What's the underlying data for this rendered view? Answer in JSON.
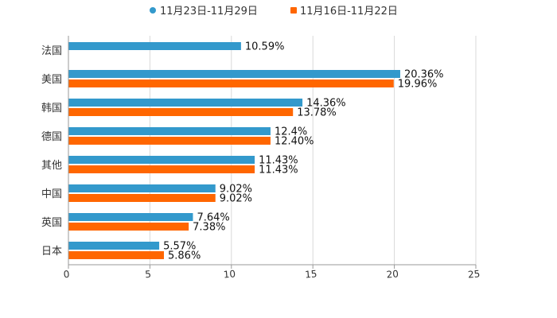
{
  "chart_data": {
    "type": "bar",
    "orientation": "horizontal",
    "categories": [
      "法国",
      "美国",
      "韩国",
      "德国",
      "其他",
      "中国",
      "英国",
      "日本"
    ],
    "series": [
      {
        "name": "11月23日-11月29日",
        "color": "#3399cc",
        "values": [
          10.59,
          20.36,
          14.36,
          12.4,
          11.43,
          9.02,
          7.64,
          5.57
        ],
        "labels": [
          "10.59%",
          "20.36%",
          "14.36%",
          "12.4%",
          "11.43%",
          "9.02%",
          "7.64%",
          "5.57%"
        ]
      },
      {
        "name": "11月16日-11月22日",
        "color": "#ff6600",
        "values": [
          null,
          19.96,
          13.78,
          12.4,
          11.43,
          9.02,
          7.38,
          5.86
        ],
        "labels": [
          null,
          "19.96%",
          "13.78%",
          "12.40%",
          "11.43%",
          "9.02%",
          "7.38%",
          "5.86%"
        ]
      }
    ],
    "xlim": [
      0,
      25
    ],
    "xticks": [
      "0",
      "5",
      "10",
      "15",
      "20",
      "25"
    ],
    "grid": true,
    "legend_position": "top-center"
  }
}
